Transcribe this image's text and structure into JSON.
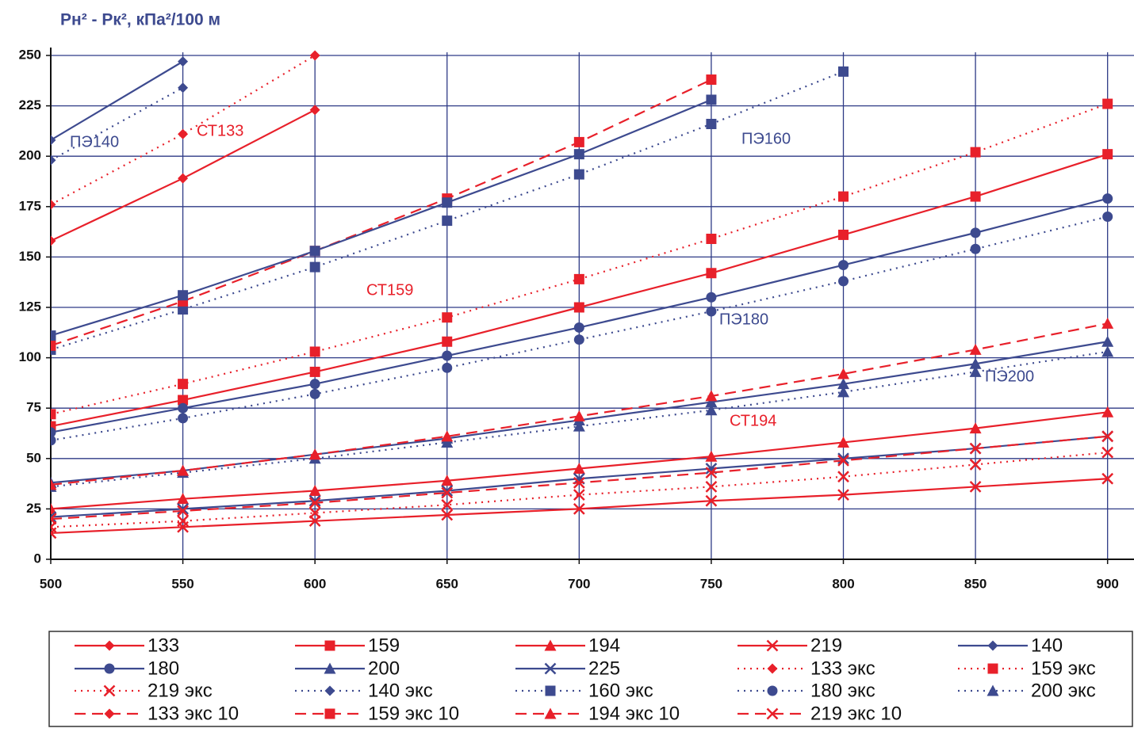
{
  "chart_data": {
    "type": "line",
    "y_title": "Pн² - Pк², кПа²/100 м",
    "x": [
      500,
      550,
      600,
      650,
      700,
      750,
      800,
      850,
      900
    ],
    "xlim": [
      500,
      910
    ],
    "ylim": [
      0,
      250
    ],
    "xticks": [
      500,
      550,
      600,
      650,
      700,
      750,
      800,
      850,
      900
    ],
    "yticks": [
      0,
      25,
      50,
      75,
      100,
      125,
      150,
      175,
      200,
      225,
      250
    ],
    "grid": true,
    "series": [
      {
        "name": "133",
        "color": "#e8202a",
        "dash": "solid",
        "marker": "diamond",
        "values": [
          158,
          189,
          223,
          null,
          null,
          null,
          null,
          null,
          null
        ]
      },
      {
        "name": "159",
        "color": "#e8202a",
        "dash": "solid",
        "marker": "square",
        "values": [
          66,
          79,
          93,
          108,
          125,
          142,
          161,
          180,
          201
        ]
      },
      {
        "name": "194",
        "color": "#e8202a",
        "dash": "solid",
        "marker": "triangle",
        "values": [
          25,
          30,
          34,
          39,
          45,
          51,
          58,
          65,
          73
        ]
      },
      {
        "name": "219",
        "color": "#e8202a",
        "dash": "solid",
        "marker": "x",
        "values": [
          13,
          16,
          19,
          22,
          25,
          29,
          32,
          36,
          40
        ]
      },
      {
        "name": "140",
        "color": "#3d4a8f",
        "dash": "solid",
        "marker": "diamond",
        "values": [
          208,
          247,
          null,
          null,
          null,
          null,
          null,
          null,
          null
        ]
      },
      {
        "name": "180",
        "color": "#3d4a8f",
        "dash": "solid",
        "marker": "circle",
        "values": [
          63,
          75,
          87,
          101,
          115,
          130,
          146,
          162,
          179
        ]
      },
      {
        "name": "200",
        "color": "#3d4a8f",
        "dash": "solid",
        "marker": "triangle",
        "values": [
          38,
          44,
          52,
          60,
          69,
          78,
          87,
          97,
          108
        ]
      },
      {
        "name": "225",
        "color": "#3d4a8f",
        "dash": "solid",
        "marker": "x",
        "values": [
          21,
          25,
          29,
          34,
          40,
          45,
          50,
          55,
          61
        ]
      },
      {
        "name": "133 экс",
        "color": "#e8202a",
        "dash": "dotted",
        "marker": "diamond",
        "values": [
          176,
          211,
          250,
          null,
          null,
          null,
          null,
          null,
          null
        ]
      },
      {
        "name": "159 экс",
        "color": "#e8202a",
        "dash": "dotted",
        "marker": "square",
        "values": [
          72,
          87,
          103,
          120,
          139,
          159,
          180,
          202,
          226
        ]
      },
      {
        "name": "219 экс",
        "color": "#e8202a",
        "dash": "dotted",
        "marker": "x",
        "values": [
          16,
          19,
          23,
          27,
          32,
          36,
          41,
          47,
          53
        ]
      },
      {
        "name": "140 экс",
        "color": "#3d4a8f",
        "dash": "dotted",
        "marker": "diamond",
        "values": [
          198,
          234,
          null,
          null,
          null,
          null,
          null,
          null,
          null
        ]
      },
      {
        "name": "160 экс",
        "color": "#3d4a8f",
        "dash": "dotted",
        "marker": "square",
        "values": [
          104,
          124,
          145,
          168,
          191,
          216,
          242,
          null,
          null
        ]
      },
      {
        "name": "180 экс",
        "color": "#3d4a8f",
        "dash": "dotted",
        "marker": "circle",
        "values": [
          59,
          70,
          82,
          95,
          109,
          123,
          138,
          154,
          170
        ]
      },
      {
        "name": "200 экс",
        "color": "#3d4a8f",
        "dash": "dotted",
        "marker": "triangle",
        "values": [
          36,
          43,
          50,
          58,
          66,
          74,
          83,
          93,
          103
        ]
      },
      {
        "name": "133 экс 10",
        "color": "#e8202a",
        "dash": "dashed",
        "marker": "diamond",
        "values": [
          null,
          null,
          null,
          null,
          null,
          null,
          null,
          null,
          null
        ]
      },
      {
        "name": "159 экс 10",
        "color": "#e8202a",
        "dash": "dashed",
        "marker": "square",
        "values": [
          106,
          128,
          153,
          179,
          207,
          238,
          null,
          null,
          null
        ]
      },
      {
        "name": "194 экс 10",
        "color": "#e8202a",
        "dash": "dashed",
        "marker": "triangle",
        "values": [
          37,
          44,
          52,
          61,
          71,
          81,
          92,
          104,
          117
        ]
      },
      {
        "name": "219 экс 10",
        "color": "#e8202a",
        "dash": "dashed",
        "marker": "x",
        "values": [
          20,
          24,
          28,
          33,
          38,
          43,
          49,
          55,
          61
        ]
      },
      {
        "color": "#3d4a8f",
        "dash": "solid",
        "marker": "square",
        "values": [
          111,
          131,
          153,
          177,
          201,
          228,
          null,
          null,
          null
        ]
      }
    ],
    "annotations": [
      {
        "text": "ПЭ140",
        "color": "#3d4a8f"
      },
      {
        "text": "СТ133",
        "color": "#e8202a"
      },
      {
        "text": "ПЭ160",
        "color": "#3d4a8f"
      },
      {
        "text": "СТ159",
        "color": "#e8202a"
      },
      {
        "text": "ПЭ180",
        "color": "#3d4a8f"
      },
      {
        "text": "ПЭ200",
        "color": "#3d4a8f"
      },
      {
        "text": "СТ194",
        "color": "#e8202a"
      }
    ]
  }
}
